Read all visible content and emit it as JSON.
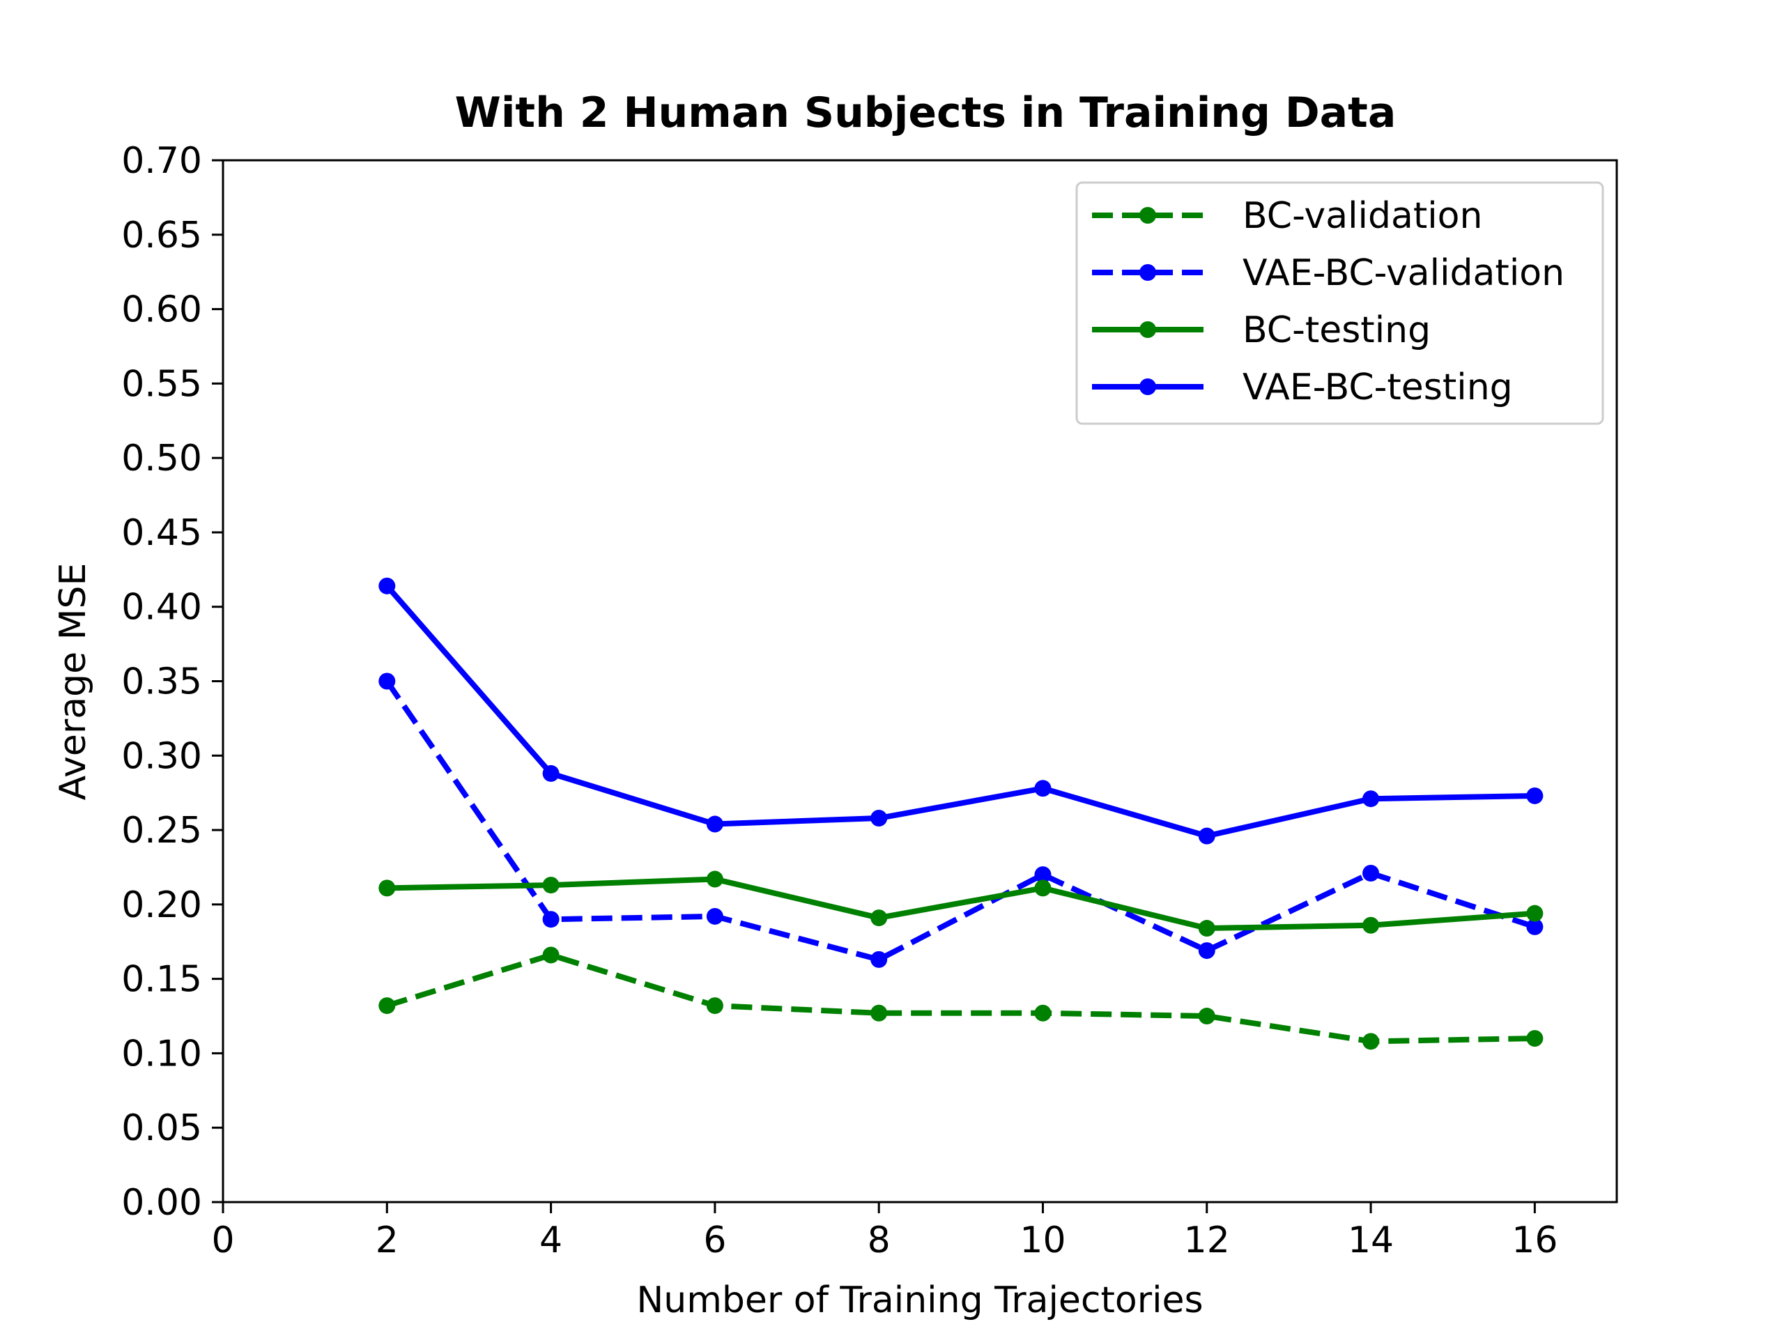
{
  "chart_data": {
    "type": "line",
    "title": "With 2 Human Subjects in Training Data",
    "xlabel": "Number of Training Trajectories",
    "ylabel": "Average MSE",
    "xlim": [
      0,
      17
    ],
    "ylim": [
      0,
      0.7
    ],
    "xticks": [
      "0",
      "2",
      "4",
      "6",
      "8",
      "10",
      "12",
      "14",
      "16"
    ],
    "yticks": [
      "0.00",
      "0.05",
      "0.10",
      "0.15",
      "0.20",
      "0.25",
      "0.30",
      "0.35",
      "0.40",
      "0.45",
      "0.50",
      "0.55",
      "0.60",
      "0.65",
      "0.70"
    ],
    "grid": false,
    "legend_position": "top-right",
    "x": [
      2,
      4,
      6,
      8,
      10,
      12,
      14,
      16
    ],
    "series": [
      {
        "name": "BC-validation",
        "color": "#008000",
        "style": "dashed",
        "values": [
          0.132,
          0.166,
          0.132,
          0.127,
          0.127,
          0.125,
          0.108,
          0.11
        ]
      },
      {
        "name": "VAE-BC-validation",
        "color": "#0000ff",
        "style": "dashed",
        "values": [
          0.35,
          0.19,
          0.192,
          0.163,
          0.22,
          0.169,
          0.221,
          0.185
        ]
      },
      {
        "name": "BC-testing",
        "color": "#008000",
        "style": "solid",
        "values": [
          0.211,
          0.213,
          0.217,
          0.191,
          0.211,
          0.184,
          0.186,
          0.194
        ]
      },
      {
        "name": "VAE-BC-testing",
        "color": "#0000ff",
        "style": "solid",
        "values": [
          0.414,
          0.288,
          0.254,
          0.258,
          0.278,
          0.246,
          0.271,
          0.273
        ]
      }
    ]
  }
}
